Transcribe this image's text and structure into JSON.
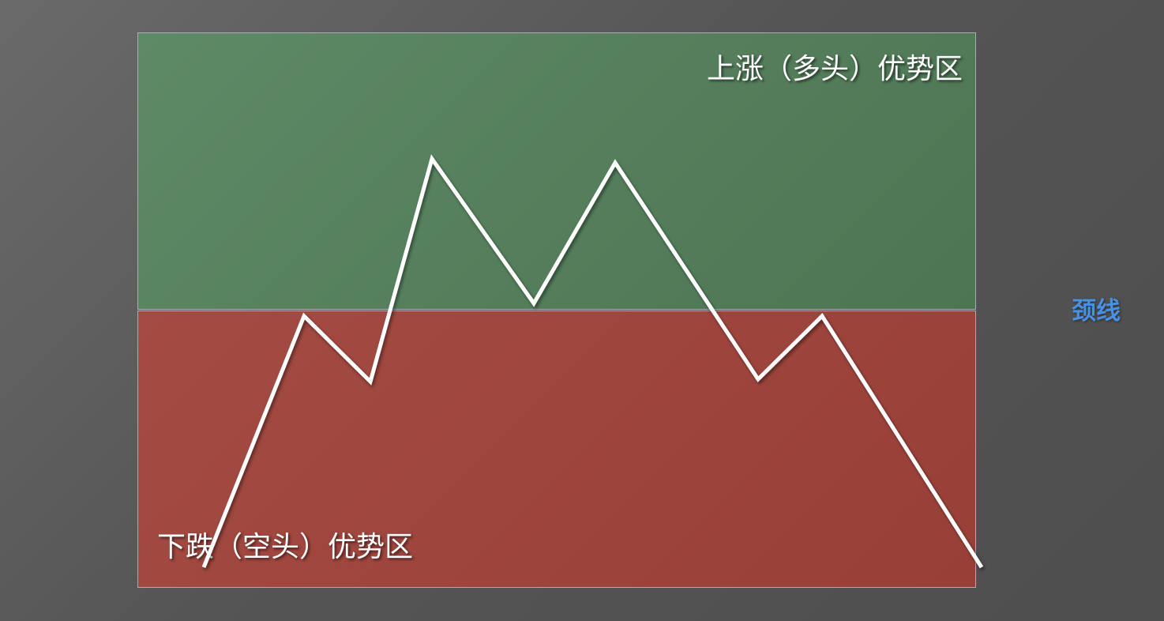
{
  "zones": {
    "bull_label": "上涨（多头）优势区",
    "bear_label": "下跌（空头）优势区",
    "bull_color": "#5a8460",
    "bear_color": "#a0463f"
  },
  "neckline": {
    "label": "颈线",
    "color": "#4a90e2"
  },
  "price_line_color": "#ffffff"
}
